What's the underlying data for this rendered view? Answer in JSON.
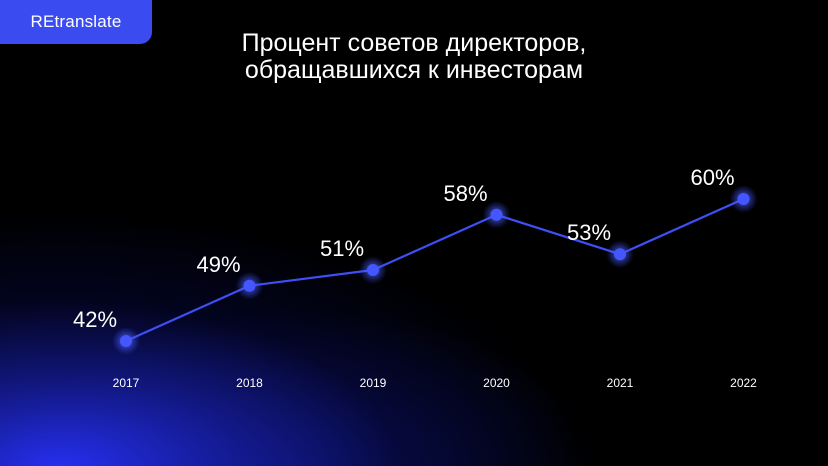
{
  "brand": {
    "label": "REtranslate"
  },
  "chart_data": {
    "type": "line",
    "title_lines": [
      "Процент советов директоров,",
      "обращавшихся к инвесторам"
    ],
    "categories": [
      "2017",
      "2018",
      "2019",
      "2020",
      "2021",
      "2022"
    ],
    "values": [
      42,
      49,
      51,
      58,
      53,
      60
    ],
    "value_labels": [
      "42%",
      "49%",
      "51%",
      "58%",
      "53%",
      "60%"
    ],
    "unit": "%",
    "xlabel": "",
    "ylabel": "",
    "grid": false,
    "colors": {
      "line": "#3d4ff5",
      "point": "#4456ff",
      "background": "#000000"
    }
  }
}
